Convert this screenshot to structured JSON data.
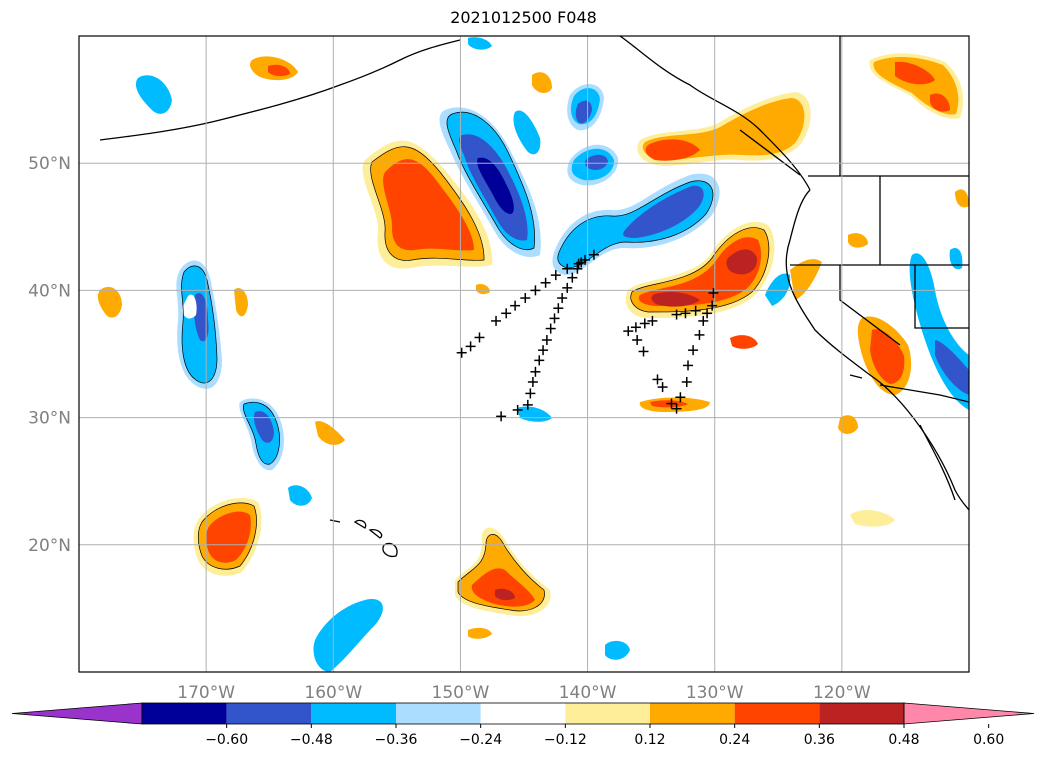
{
  "title": "2021012500 F048",
  "map": {
    "extent": {
      "lon_min": 180,
      "lon_max": 250,
      "lat_min": 10,
      "lat_max": 60
    },
    "lon_ticks": [
      {
        "lon": 190,
        "label": "170°W"
      },
      {
        "lon": 200,
        "label": "160°W"
      },
      {
        "lon": 210,
        "label": "150°W"
      },
      {
        "lon": 220,
        "label": "140°W"
      },
      {
        "lon": 230,
        "label": "130°W"
      },
      {
        "lon": 240,
        "label": "120°W"
      }
    ],
    "lat_ticks": [
      {
        "lat": 20,
        "label": "20°N"
      },
      {
        "lat": 30,
        "label": "30°N"
      },
      {
        "lat": 40,
        "label": "40°N"
      },
      {
        "lat": 50,
        "label": "50°N"
      }
    ],
    "grid": true
  },
  "colorbar": {
    "colors": [
      "#9933cc",
      "#000099",
      "#3355cc",
      "#00bbff",
      "#aaddff",
      "#ffffff",
      "#ffee99",
      "#ffaa00",
      "#ff4400",
      "#bb2222",
      "#ff88aa"
    ],
    "ticks": [
      "−0.60",
      "−0.48",
      "−0.36",
      "−0.24",
      "−0.12",
      "0.12",
      "0.24",
      "0.36",
      "0.48",
      "0.60"
    ],
    "extend": "both"
  },
  "trajectory_markers": {
    "symbol": "+",
    "points": [
      [
        210.1,
        35.1
      ],
      [
        210.8,
        35.6
      ],
      [
        211.5,
        36.3
      ],
      [
        212.8,
        37.6
      ],
      [
        213.6,
        38.2
      ],
      [
        214.3,
        38.8
      ],
      [
        215.1,
        39.4
      ],
      [
        215.9,
        40
      ],
      [
        216.7,
        40.6
      ],
      [
        217.5,
        41.2
      ],
      [
        218.4,
        41.7
      ],
      [
        219.3,
        42.1
      ],
      [
        219.8,
        42.4
      ],
      [
        220.5,
        42.8
      ],
      [
        213.2,
        30.1
      ],
      [
        214.5,
        30.6
      ],
      [
        215.3,
        31
      ],
      [
        215.5,
        31.9
      ],
      [
        215.7,
        32.8
      ],
      [
        215.9,
        33.6
      ],
      [
        216.2,
        34.5
      ],
      [
        216.5,
        35.3
      ],
      [
        216.8,
        36.1
      ],
      [
        217.1,
        37
      ],
      [
        217.4,
        37.8
      ],
      [
        217.7,
        38.6
      ],
      [
        218,
        39.4
      ],
      [
        218.4,
        40.2
      ],
      [
        218.8,
        41
      ],
      [
        219.2,
        41.7
      ],
      [
        219.5,
        42.2
      ],
      [
        223.2,
        36.8
      ],
      [
        223.8,
        37.1
      ],
      [
        224.5,
        37.4
      ],
      [
        225.1,
        37.6
      ],
      [
        223.9,
        36.1
      ],
      [
        224.4,
        35.2
      ],
      [
        225.5,
        33
      ],
      [
        225.9,
        32.4
      ],
      [
        226.6,
        31.1
      ],
      [
        227.3,
        31.6
      ],
      [
        227,
        30.7
      ],
      [
        227.8,
        32.8
      ],
      [
        227.9,
        34.1
      ],
      [
        228.3,
        35.3
      ],
      [
        228.8,
        36.5
      ],
      [
        229.1,
        37.6
      ],
      [
        229.4,
        38.2
      ],
      [
        229.8,
        38.8
      ],
      [
        229.9,
        39.8
      ],
      [
        228.5,
        38.4
      ],
      [
        227.7,
        38.2
      ],
      [
        227,
        38.1
      ]
    ]
  }
}
